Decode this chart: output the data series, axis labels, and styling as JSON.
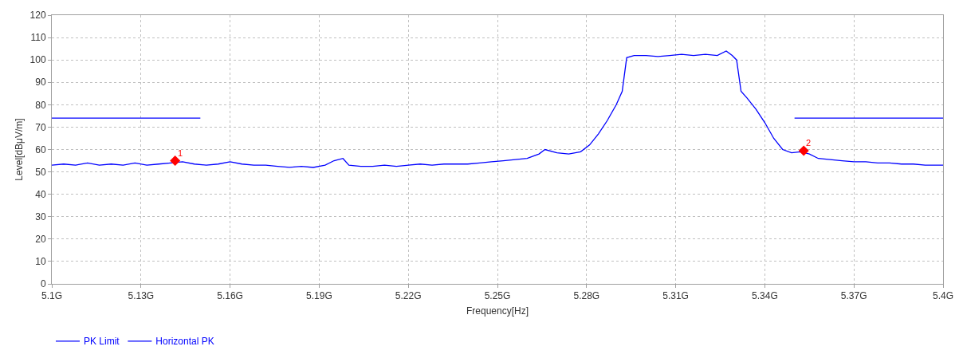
{
  "chart_data": {
    "type": "line",
    "xlabel": "Frequency[Hz]",
    "ylabel": "Level[dBμV/m]",
    "xlim": [
      5.1,
      5.4
    ],
    "xticks": [
      {
        "value": 5.1,
        "label": "5.1G"
      },
      {
        "value": 5.13,
        "label": "5.13G"
      },
      {
        "value": 5.16,
        "label": "5.16G"
      },
      {
        "value": 5.19,
        "label": "5.19G"
      },
      {
        "value": 5.22,
        "label": "5.22G"
      },
      {
        "value": 5.25,
        "label": "5.25G"
      },
      {
        "value": 5.28,
        "label": "5.28G"
      },
      {
        "value": 5.31,
        "label": "5.31G"
      },
      {
        "value": 5.34,
        "label": "5.34G"
      },
      {
        "value": 5.37,
        "label": "5.37G"
      },
      {
        "value": 5.4,
        "label": "5.4G"
      }
    ],
    "ylim": [
      0,
      120
    ],
    "yticks": [
      0,
      10,
      20,
      30,
      40,
      50,
      60,
      70,
      80,
      90,
      100,
      110,
      120
    ],
    "grid": true,
    "legend": "bottom left",
    "marker": "none",
    "line_style": "solid",
    "series": [
      {
        "name": "PK Limit",
        "color": "#0000ff",
        "x": [
          5.1,
          5.15,
          5.25,
          5.35,
          5.4
        ],
        "values": [
          74,
          74,
          null,
          74,
          74
        ]
      },
      {
        "name": "Horizontal PK",
        "color": "#0000ff",
        "x": [
          5.1,
          5.104,
          5.108,
          5.112,
          5.116,
          5.12,
          5.124,
          5.128,
          5.132,
          5.136,
          5.14,
          5.144,
          5.148,
          5.152,
          5.156,
          5.16,
          5.164,
          5.168,
          5.172,
          5.176,
          5.18,
          5.184,
          5.188,
          5.192,
          5.195,
          5.198,
          5.2,
          5.204,
          5.208,
          5.212,
          5.216,
          5.22,
          5.224,
          5.228,
          5.232,
          5.236,
          5.24,
          5.244,
          5.248,
          5.252,
          5.256,
          5.26,
          5.264,
          5.266,
          5.27,
          5.274,
          5.278,
          5.281,
          5.284,
          5.287,
          5.29,
          5.292,
          5.2935,
          5.296,
          5.3,
          5.304,
          5.308,
          5.312,
          5.316,
          5.32,
          5.324,
          5.327,
          5.329,
          5.3305,
          5.332,
          5.334,
          5.337,
          5.34,
          5.343,
          5.346,
          5.349,
          5.352,
          5.355,
          5.358,
          5.362,
          5.366,
          5.37,
          5.374,
          5.378,
          5.382,
          5.386,
          5.39,
          5.394,
          5.398,
          5.4
        ],
        "values": [
          53,
          53.5,
          53,
          54,
          53,
          53.5,
          53,
          54,
          53,
          53.5,
          54,
          54.5,
          53.5,
          53,
          53.5,
          54.5,
          53.5,
          53,
          53,
          52.5,
          52,
          52.5,
          52,
          53,
          55,
          56,
          53,
          52.5,
          52.5,
          53,
          52.5,
          53,
          53.5,
          53,
          53.5,
          53.5,
          53.5,
          54,
          54.5,
          55,
          55.5,
          56,
          58,
          60,
          58.5,
          58,
          59,
          62,
          67,
          73,
          80,
          86,
          101,
          102,
          102,
          101.5,
          102,
          102.5,
          102,
          102.5,
          102,
          104,
          102,
          100,
          86,
          83,
          78,
          72,
          65,
          60,
          58.5,
          59,
          58,
          56,
          55.5,
          55,
          54.5,
          54.5,
          54,
          54,
          53.5,
          53.5,
          53,
          53,
          53
        ]
      },
      {
        "type": "scatter",
        "color": "#ff0000",
        "marker": "diamond",
        "x": [
          5.1415,
          5.3531
        ],
        "values": [
          55,
          59.5
        ]
      }
    ],
    "annotations": [
      {
        "text": "1",
        "x": 5.1415,
        "y": 55
      },
      {
        "text": "2",
        "x": 5.3531,
        "y": 59.5
      }
    ]
  }
}
